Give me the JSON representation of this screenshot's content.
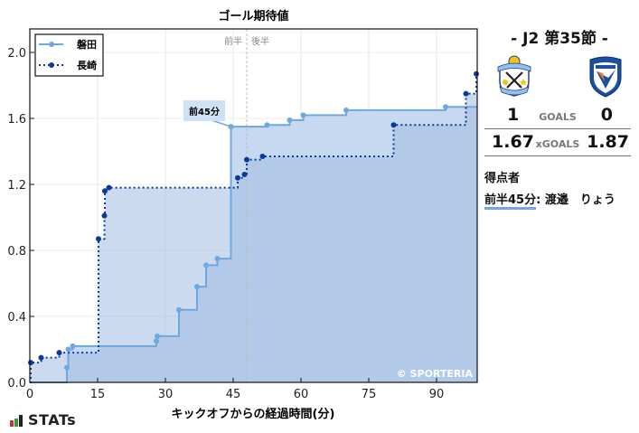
{
  "chart_data": {
    "type": "line",
    "subtype": "step",
    "title": "ゴール期待値",
    "xlabel": "キックオフからの経過時間(分)",
    "ylabel": "",
    "xlim": [
      0,
      99
    ],
    "ylim": [
      0,
      2.15
    ],
    "xticks": [
      0,
      15,
      30,
      45,
      60,
      75,
      90
    ],
    "yticks": [
      0.0,
      0.4,
      0.8,
      1.2,
      1.6,
      2.0
    ],
    "ytick_labels": [
      "0.0",
      "0.4",
      "0.8",
      "1.2",
      "1.6",
      "2.0"
    ],
    "grid": true,
    "legend_position": "upper left",
    "half_labels": [
      "前半",
      "後半"
    ],
    "half_divider_minute": 48,
    "annotation": {
      "label": "前45分",
      "x": 44.5,
      "y": 1.55
    },
    "watermark": "© SPORTERIA",
    "series": [
      {
        "name": "磐田",
        "style": "solid",
        "color": "#6fa8e0",
        "fill": "#dbe8f6",
        "points": [
          {
            "x": 0,
            "y": 0.0
          },
          {
            "x": 8.2,
            "y": 0.09
          },
          {
            "x": 8.5,
            "y": 0.2
          },
          {
            "x": 9.5,
            "y": 0.22
          },
          {
            "x": 28.0,
            "y": 0.25
          },
          {
            "x": 28.2,
            "y": 0.28
          },
          {
            "x": 33.0,
            "y": 0.44
          },
          {
            "x": 37.0,
            "y": 0.58
          },
          {
            "x": 39.0,
            "y": 0.71
          },
          {
            "x": 41.5,
            "y": 0.75
          },
          {
            "x": 44.5,
            "y": 1.55
          },
          {
            "x": 52.5,
            "y": 1.56
          },
          {
            "x": 57.5,
            "y": 1.59
          },
          {
            "x": 60.5,
            "y": 1.62
          },
          {
            "x": 70.0,
            "y": 1.65
          },
          {
            "x": 92.0,
            "y": 1.67
          },
          {
            "x": 99.0,
            "y": 1.67
          }
        ],
        "final": 1.67
      },
      {
        "name": "長崎",
        "style": "dotted",
        "color": "#0b3a99",
        "fill": "#b9cde6",
        "points": [
          {
            "x": 0,
            "y": 0.0
          },
          {
            "x": 0.2,
            "y": 0.12
          },
          {
            "x": 2.5,
            "y": 0.15
          },
          {
            "x": 6.5,
            "y": 0.18
          },
          {
            "x": 15.2,
            "y": 0.87
          },
          {
            "x": 16.5,
            "y": 1.01
          },
          {
            "x": 16.6,
            "y": 1.16
          },
          {
            "x": 17.5,
            "y": 1.18
          },
          {
            "x": 46.0,
            "y": 1.24
          },
          {
            "x": 47.5,
            "y": 1.26
          },
          {
            "x": 48.0,
            "y": 1.35
          },
          {
            "x": 51.5,
            "y": 1.37
          },
          {
            "x": 80.5,
            "y": 1.56
          },
          {
            "x": 96.5,
            "y": 1.75
          },
          {
            "x": 98.8,
            "y": 1.87
          }
        ],
        "final": 1.87
      }
    ]
  },
  "match": {
    "round": "- J2 第35節 -",
    "home": {
      "name": "磐田",
      "crest": "jubilo-iwata-crest",
      "goals": "1",
      "xgoals": "1.67"
    },
    "away": {
      "name": "長崎",
      "crest": "v-varen-nagasaki-crest",
      "goals": "0",
      "xgoals": "1.87"
    },
    "goals_label": "GOALS",
    "xgoals_label": "xGOALS",
    "scorers_title": "得点者",
    "scorers": [
      {
        "time": "前半45分",
        "separator": ":",
        "player": "渡邉　りょう",
        "team": "home"
      }
    ]
  },
  "branding": {
    "logo_text": "STATs",
    "logo_bar_colors": [
      "#d32f2f",
      "#2e9d3a",
      "#222222"
    ]
  }
}
